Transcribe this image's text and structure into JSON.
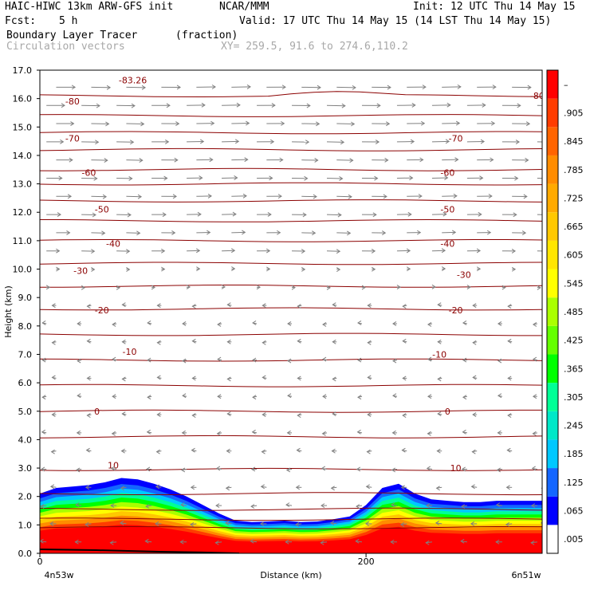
{
  "header": {
    "model": "HAIC-HIWC 13km ARW-GFS init",
    "org": "NCAR/MMM",
    "init": "Init: 12 UTC Thu 14 May 15",
    "fcst_label": "Fcst:",
    "fcst_value": "5 h",
    "valid": "Valid: 17 UTC Thu 14 May 15 (14 LST Thu 14 May 15)",
    "field": "Boundary Layer Tracer",
    "units": "(fraction)",
    "vectors": "Circulation vectors",
    "xy": "XY= 259.5, 91.6 to 274.6,110.2"
  },
  "chart_data": {
    "type": "heatmap",
    "title": "Boundary Layer Tracer (fraction)",
    "xlabel": "Distance (km)",
    "ylabel": "Height (km)",
    "xlim": [
      0,
      308
    ],
    "ylim": [
      0,
      17
    ],
    "x_ticks": [
      0,
      200
    ],
    "x_end_labels": [
      "4n53w",
      "6n51w"
    ],
    "y_ticks": [
      "0.0",
      "1.0",
      "2.0",
      "3.0",
      "4.0",
      "5.0",
      "6.0",
      "7.0",
      "8.0",
      "9.0",
      "10.0",
      "11.0",
      "12.0",
      "13.0",
      "14.0",
      "15.0",
      "16.0",
      "17.0"
    ],
    "colorbar_labels": [
      ".005",
      ".065",
      ".125",
      ".185",
      ".245",
      ".305",
      ".365",
      ".425",
      ".485",
      ".545",
      ".605",
      ".665",
      ".725",
      ".785",
      ".845",
      ".905",
      "–"
    ],
    "colorbar_colors": [
      "#ffffff",
      "#0000ff",
      "#1466ff",
      "#00c8ff",
      "#00e8c8",
      "#00ff96",
      "#00ff00",
      "#64ff00",
      "#aaff00",
      "#ffff00",
      "#ffe600",
      "#ffc800",
      "#ffaa00",
      "#ff8c00",
      "#ff6400",
      "#ff3c00",
      "#ff0000"
    ],
    "tracer_top_km": {
      "x": [
        0,
        10,
        20,
        30,
        40,
        50,
        60,
        70,
        80,
        90,
        100,
        110,
        120,
        130,
        140,
        150,
        160,
        170,
        180,
        190,
        200,
        210,
        220,
        230,
        240,
        250,
        260,
        270,
        280,
        290,
        300,
        308
      ],
      "y": [
        2.1,
        2.3,
        2.35,
        2.4,
        2.5,
        2.65,
        2.6,
        2.45,
        2.25,
        2.0,
        1.7,
        1.4,
        1.15,
        1.1,
        1.12,
        1.15,
        1.1,
        1.12,
        1.2,
        1.3,
        1.7,
        2.3,
        2.45,
        2.1,
        1.9,
        1.85,
        1.8,
        1.8,
        1.85,
        1.85,
        1.85,
        1.85
      ]
    },
    "temperature_contours": {
      "levels": [
        -83.26,
        -80,
        -70,
        -60,
        -50,
        -40,
        -30,
        -20,
        -10,
        0,
        10
      ],
      "labels": [
        "-83.26",
        "-80",
        "-70",
        "-60",
        "-50",
        "-40",
        "-30",
        "-20",
        "-10",
        "0",
        "10"
      ],
      "color": "#8b0000"
    },
    "vectors": {
      "name": "Circulation vectors",
      "upper_level_direction": "eastward",
      "lower_level_direction": "westward",
      "color": "#808080"
    }
  }
}
